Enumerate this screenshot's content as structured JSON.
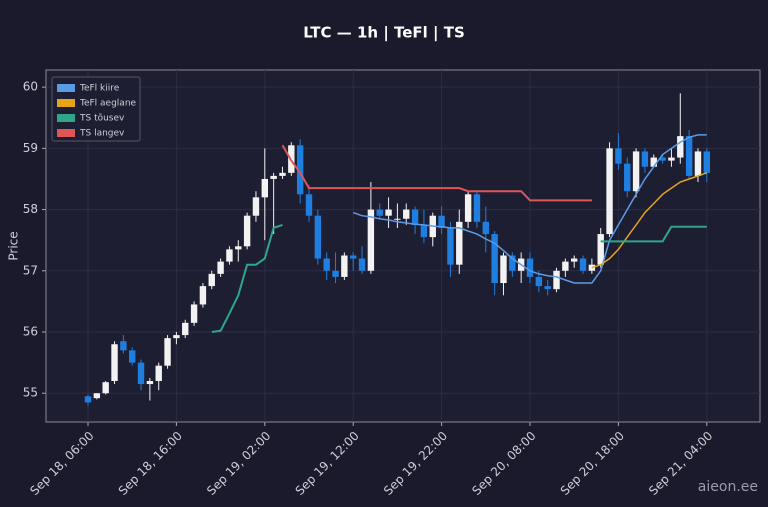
{
  "chart_data": {
    "type": "candlestick",
    "title": "LTC — 1h  |  TeFl  |  TS",
    "y_label": "Price",
    "watermark": "aieon.ee",
    "x": [
      "Sep 18, 06:00",
      null,
      null,
      null,
      null,
      null,
      null,
      null,
      null,
      null,
      "Sep 18, 16:00",
      null,
      null,
      null,
      null,
      null,
      null,
      null,
      null,
      null,
      "Sep 19, 02:00",
      null,
      null,
      null,
      null,
      null,
      null,
      null,
      null,
      null,
      "Sep 19, 12:00",
      null,
      null,
      null,
      null,
      null,
      null,
      null,
      null,
      null,
      "Sep 19, 22:00",
      null,
      null,
      null,
      null,
      null,
      null,
      null,
      null,
      null,
      "Sep 20, 08:00",
      null,
      null,
      null,
      null,
      null,
      null,
      null,
      null,
      null,
      "Sep 20, 18:00",
      null,
      null,
      null,
      null,
      null,
      null,
      null,
      null,
      null,
      "Sep 21, 04:00"
    ],
    "open": [
      54.95,
      54.92,
      55.0,
      55.2,
      55.85,
      55.7,
      55.5,
      55.15,
      55.2,
      55.45,
      55.9,
      55.95,
      56.15,
      56.45,
      56.75,
      56.95,
      57.15,
      57.35,
      57.4,
      57.9,
      58.2,
      58.5,
      58.55,
      58.6,
      59.05,
      58.25,
      57.9,
      57.2,
      57.0,
      56.9,
      57.25,
      57.2,
      57.0,
      58.0,
      57.9,
      57.85,
      57.85,
      58.0,
      57.75,
      57.55,
      57.9,
      57.7,
      57.1,
      57.8,
      58.25,
      57.8,
      57.6,
      56.8,
      57.25,
      57.0,
      57.2,
      56.9,
      56.75,
      56.7,
      57.0,
      57.15,
      57.2,
      57.0,
      57.1,
      57.6,
      59.0,
      58.75,
      58.3,
      58.95,
      58.7,
      58.85,
      58.8,
      58.85,
      59.2,
      58.55,
      58.95
    ],
    "high": [
      54.98,
      55.0,
      55.2,
      55.85,
      55.95,
      55.75,
      55.55,
      55.25,
      55.5,
      55.95,
      56.0,
      56.2,
      56.5,
      56.8,
      57.0,
      57.2,
      57.4,
      57.5,
      57.95,
      58.3,
      59.0,
      58.6,
      58.7,
      59.1,
      59.15,
      58.4,
      58.0,
      57.3,
      57.3,
      57.3,
      57.3,
      57.4,
      58.45,
      58.1,
      58.2,
      58.1,
      58.1,
      58.05,
      58.0,
      57.95,
      58.05,
      57.8,
      58.0,
      58.3,
      58.3,
      58.05,
      57.65,
      57.3,
      57.3,
      57.3,
      57.3,
      57.0,
      56.85,
      57.05,
      57.2,
      57.25,
      57.25,
      57.2,
      57.7,
      59.1,
      59.25,
      58.85,
      59.0,
      59.0,
      58.9,
      58.9,
      59.0,
      59.9,
      59.3,
      59.0,
      59.0
    ],
    "low": [
      54.8,
      54.9,
      54.98,
      55.15,
      55.65,
      55.45,
      55.05,
      54.88,
      55.05,
      55.4,
      55.8,
      55.9,
      56.1,
      56.4,
      56.7,
      56.9,
      57.1,
      57.15,
      57.35,
      57.8,
      57.5,
      57.6,
      58.5,
      58.55,
      58.1,
      57.8,
      57.1,
      56.85,
      56.8,
      56.85,
      57.0,
      56.95,
      56.95,
      57.85,
      57.7,
      57.7,
      57.75,
      57.6,
      57.45,
      57.4,
      57.6,
      56.9,
      56.95,
      57.7,
      57.7,
      57.3,
      56.6,
      56.6,
      56.9,
      56.8,
      56.8,
      56.65,
      56.6,
      56.65,
      56.9,
      57.05,
      56.95,
      56.95,
      57.05,
      57.55,
      58.65,
      58.2,
      58.2,
      58.6,
      58.7,
      58.75,
      58.7,
      58.75,
      58.5,
      58.45,
      58.45
    ],
    "close": [
      54.85,
      55.0,
      55.18,
      55.8,
      55.7,
      55.5,
      55.15,
      55.2,
      55.45,
      55.9,
      55.95,
      56.15,
      56.45,
      56.75,
      56.95,
      57.15,
      57.35,
      57.4,
      57.9,
      58.2,
      58.5,
      58.55,
      58.6,
      59.05,
      58.25,
      57.9,
      57.2,
      57.0,
      56.9,
      57.25,
      57.2,
      57.0,
      58.0,
      57.9,
      58.0,
      57.85,
      58.0,
      57.75,
      57.55,
      57.9,
      57.7,
      57.1,
      57.8,
      58.25,
      57.8,
      57.6,
      56.8,
      57.25,
      57.0,
      57.2,
      56.9,
      56.75,
      56.7,
      57.0,
      57.15,
      57.2,
      57.0,
      57.1,
      57.6,
      59.0,
      58.75,
      58.3,
      58.95,
      58.7,
      58.85,
      58.8,
      58.85,
      59.2,
      58.55,
      58.95,
      58.6
    ],
    "up_color": "#f2f2f2",
    "down_color": "#1e7fe0",
    "series": [
      {
        "name": "TeFl kiire",
        "color": "#5b9be6",
        "values": [
          null,
          null,
          null,
          null,
          null,
          null,
          null,
          null,
          null,
          null,
          null,
          null,
          null,
          null,
          null,
          null,
          null,
          null,
          null,
          null,
          null,
          null,
          null,
          null,
          null,
          null,
          null,
          null,
          null,
          null,
          57.95,
          57.9,
          57.88,
          57.85,
          57.83,
          57.8,
          57.78,
          57.76,
          57.75,
          57.73,
          57.72,
          57.7,
          57.7,
          57.65,
          57.6,
          57.52,
          57.45,
          57.33,
          57.2,
          57.1,
          57.0,
          56.95,
          56.92,
          56.9,
          56.85,
          56.8,
          56.8,
          56.8,
          57.0,
          57.5,
          57.75,
          58.0,
          58.25,
          58.5,
          58.7,
          58.9,
          59.0,
          59.1,
          59.18,
          59.22,
          59.22
        ]
      },
      {
        "name": "TeFl aeglane",
        "color": "#e8a317",
        "values": [
          null,
          null,
          null,
          null,
          null,
          null,
          null,
          null,
          null,
          null,
          null,
          null,
          null,
          null,
          null,
          null,
          null,
          null,
          null,
          null,
          null,
          null,
          null,
          null,
          null,
          null,
          null,
          null,
          null,
          null,
          null,
          null,
          null,
          null,
          null,
          null,
          null,
          null,
          null,
          null,
          null,
          null,
          null,
          null,
          null,
          null,
          null,
          null,
          null,
          null,
          null,
          null,
          null,
          null,
          null,
          null,
          null,
          57.05,
          57.1,
          57.2,
          57.35,
          57.55,
          57.75,
          57.95,
          58.1,
          58.25,
          58.35,
          58.45,
          58.5,
          58.55,
          58.6
        ]
      },
      {
        "name": "TS tõusev",
        "color": "#2fa68a",
        "values": [
          null,
          null,
          null,
          null,
          null,
          null,
          null,
          null,
          null,
          null,
          null,
          null,
          null,
          null,
          56.0,
          56.02,
          56.3,
          56.6,
          57.1,
          57.1,
          57.2,
          57.7,
          57.75,
          null,
          null,
          null,
          null,
          null,
          null,
          null,
          null,
          null,
          null,
          null,
          null,
          null,
          null,
          null,
          null,
          null,
          null,
          null,
          null,
          null,
          null,
          null,
          null,
          null,
          null,
          null,
          null,
          null,
          null,
          null,
          null,
          null,
          null,
          null,
          57.48,
          57.48,
          57.48,
          57.48,
          57.48,
          57.48,
          57.48,
          57.48,
          57.72,
          57.72,
          57.72,
          57.72,
          57.72
        ]
      },
      {
        "name": "TS langev",
        "color": "#e05555",
        "values": [
          null,
          null,
          null,
          null,
          null,
          null,
          null,
          null,
          null,
          null,
          null,
          null,
          null,
          null,
          null,
          null,
          null,
          null,
          null,
          null,
          null,
          null,
          59.05,
          58.8,
          58.6,
          58.35,
          58.35,
          58.35,
          58.35,
          58.35,
          58.35,
          58.35,
          58.35,
          58.35,
          58.35,
          58.35,
          58.35,
          58.35,
          58.35,
          58.35,
          58.35,
          58.35,
          58.35,
          58.3,
          58.3,
          58.3,
          58.3,
          58.3,
          58.3,
          58.3,
          58.15,
          58.15,
          58.15,
          58.15,
          58.15,
          58.15,
          58.15,
          58.15,
          null,
          null,
          null,
          null,
          null,
          null,
          null,
          null,
          null,
          null,
          null,
          null,
          null
        ]
      }
    ],
    "ylim": [
      54.53,
      60.28
    ],
    "yticks": [
      55,
      56,
      57,
      58,
      59,
      60
    ],
    "grid": true,
    "legend": "upper left"
  }
}
